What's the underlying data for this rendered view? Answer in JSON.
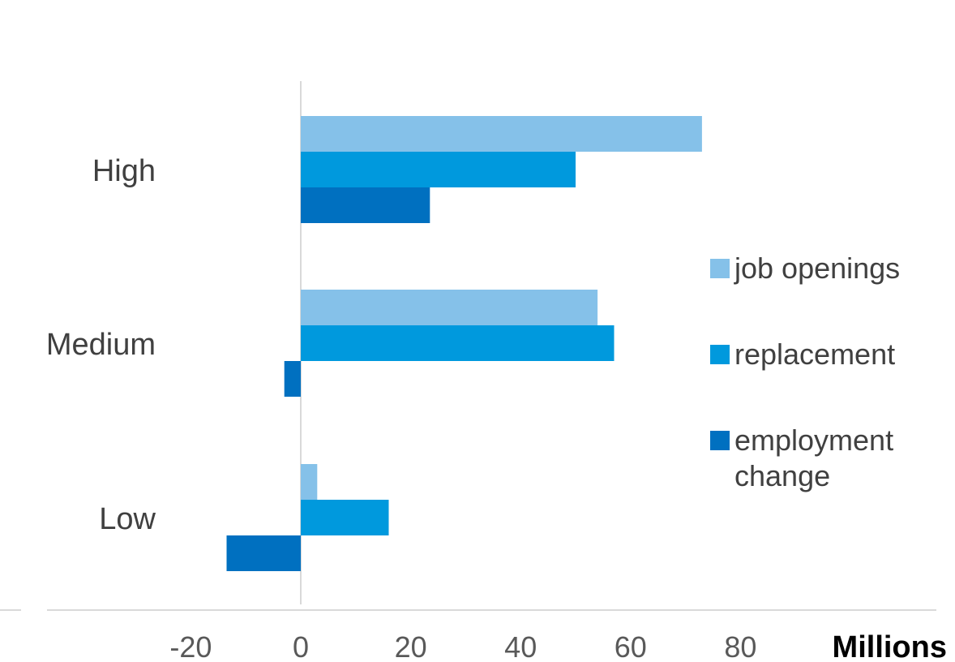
{
  "chart_data": {
    "type": "bar",
    "orientation": "horizontal",
    "categories": [
      "High",
      "Medium",
      "Low"
    ],
    "series": [
      {
        "name": "job openings",
        "color": "#85C1E9",
        "values": [
          73,
          54,
          3
        ]
      },
      {
        "name": "replacement",
        "color": "#0099DD",
        "values": [
          50,
          57,
          16
        ]
      },
      {
        "name": "employment change",
        "name_lines": [
          "employment",
          "change"
        ],
        "color": "#0070C0",
        "values": [
          23.5,
          -3,
          -13.5
        ]
      }
    ],
    "x_ticks": [
      "-20",
      "0",
      "20",
      "40",
      "60",
      "80"
    ],
    "xlim": [
      -20,
      80
    ],
    "unit_label": "Millions",
    "grid": false,
    "legend": "right"
  }
}
